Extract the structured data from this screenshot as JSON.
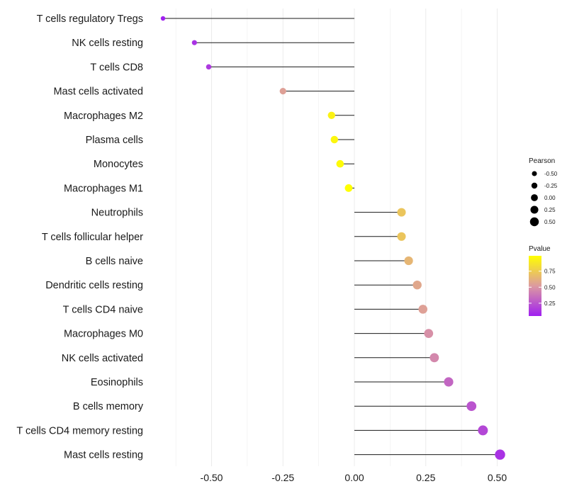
{
  "chart_data": {
    "type": "lollipop",
    "title": "",
    "xlabel": "",
    "ylabel": "",
    "xlim": [
      -0.75,
      0.55
    ],
    "x_ticks": [
      -0.5,
      -0.25,
      0.0,
      0.25,
      0.5
    ],
    "x_tick_labels": [
      "-0.50",
      "-0.25",
      "0.00",
      "0.25",
      "0.50"
    ],
    "grid": "vertical",
    "categories": [
      "T cells regulatory  Tregs",
      "NK cells resting",
      "T cells CD8",
      "Mast cells activated",
      "Macrophages M2",
      "Plasma cells",
      "Monocytes",
      "Macrophages M1",
      "Neutrophils",
      "T cells follicular helper",
      "B cells naive",
      "Dendritic cells resting",
      "T cells CD4 naive",
      "Macrophages M0",
      "NK cells activated",
      "Eosinophils",
      "B cells memory",
      "T cells CD4 memory resting",
      "Mast cells resting"
    ],
    "pearson": [
      -0.67,
      -0.56,
      -0.51,
      -0.25,
      -0.08,
      -0.07,
      -0.05,
      -0.02,
      0.165,
      0.165,
      0.19,
      0.22,
      0.24,
      0.26,
      0.28,
      0.33,
      0.41,
      0.45,
      0.51
    ],
    "pvalue": [
      0.05,
      0.12,
      0.15,
      0.55,
      0.93,
      0.95,
      0.97,
      0.99,
      0.72,
      0.72,
      0.65,
      0.58,
      0.55,
      0.48,
      0.45,
      0.32,
      0.25,
      0.2,
      0.12
    ],
    "size_legend": {
      "title": "Pearson",
      "values": [
        -0.5,
        -0.25,
        0.0,
        0.25,
        0.5
      ],
      "labels": [
        "-0.50",
        "-0.25",
        "0.00",
        "0.25",
        "0.50"
      ]
    },
    "color_legend": {
      "title": "Pvalue",
      "ticks": [
        0.25,
        0.5,
        0.75
      ],
      "labels": [
        "0.25",
        "0.50",
        "0.75"
      ],
      "range": [
        0.05,
        0.99
      ],
      "low_color": "#a020f0",
      "mid_color": "#dc9aa0",
      "high_color": "#ffff00"
    },
    "legend_position": "right"
  },
  "colors": {
    "stem": "#1a1a1a",
    "grid": "#ebebeb",
    "text": "#1a1a1a"
  }
}
